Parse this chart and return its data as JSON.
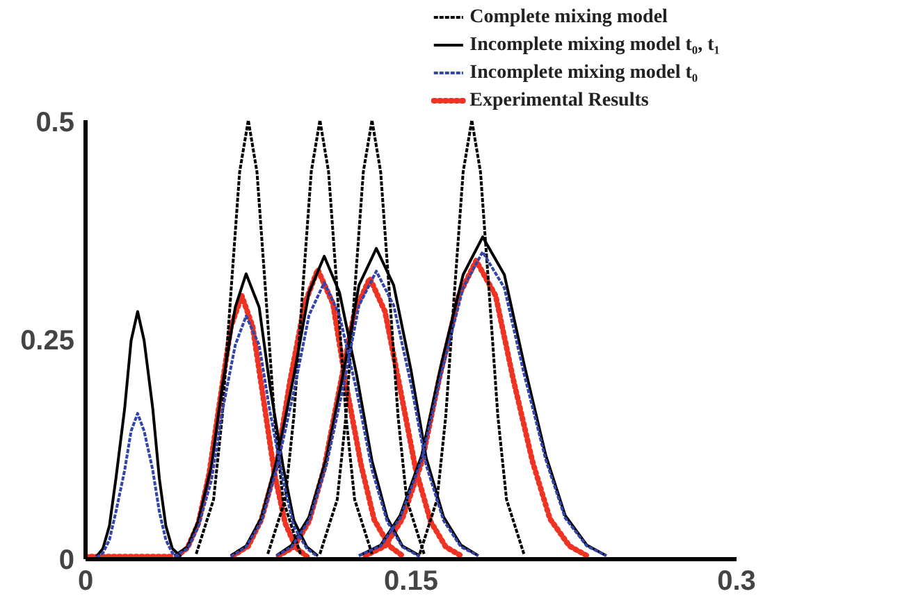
{
  "chart_data": {
    "type": "line",
    "xlim": [
      0,
      0.3
    ],
    "ylim": [
      0,
      0.5
    ],
    "xticks": [
      0,
      0.15,
      0.3
    ],
    "yticks": [
      0,
      0.25,
      0.5
    ],
    "grid": false,
    "legend": "top right",
    "marker": "none",
    "series": [
      {
        "name": "Complete mixing model",
        "color": "#000000",
        "line_style": "dashed",
        "x": [
          0.051,
          0.059,
          0.063,
          0.067,
          0.071,
          0.075,
          0.079,
          0.083,
          0.087,
          0.091,
          0.099
        ],
        "values": [
          0.006,
          0.068,
          0.163,
          0.304,
          0.441,
          0.5,
          0.441,
          0.304,
          0.163,
          0.068,
          0.006
        ]
      },
      {
        "color": "#000000",
        "line_style": "dashed",
        "x": [
          0.084,
          0.092,
          0.096,
          0.1,
          0.104,
          0.108,
          0.112,
          0.116,
          0.12,
          0.124,
          0.132
        ],
        "values": [
          0.006,
          0.068,
          0.163,
          0.304,
          0.441,
          0.5,
          0.441,
          0.304,
          0.163,
          0.068,
          0.006
        ]
      },
      {
        "color": "#000000",
        "line_style": "dashed",
        "x": [
          0.108,
          0.116,
          0.12,
          0.124,
          0.128,
          0.132,
          0.136,
          0.14,
          0.144,
          0.148,
          0.156
        ],
        "values": [
          0.006,
          0.068,
          0.163,
          0.304,
          0.441,
          0.5,
          0.441,
          0.304,
          0.163,
          0.068,
          0.006
        ]
      },
      {
        "color": "#000000",
        "line_style": "dashed",
        "x": [
          0.154,
          0.162,
          0.166,
          0.17,
          0.174,
          0.178,
          0.182,
          0.186,
          0.19,
          0.194,
          0.202
        ],
        "values": [
          0.006,
          0.068,
          0.163,
          0.304,
          0.441,
          0.5,
          0.441,
          0.304,
          0.163,
          0.068,
          0.006
        ]
      },
      {
        "name": "Incomplete mixing model t₀, t₁",
        "color": "#000000",
        "line_style": "solid",
        "x": [
          0.005,
          0.008,
          0.011,
          0.014,
          0.018,
          0.021,
          0.024,
          0.027,
          0.031,
          0.034,
          0.037,
          0.04,
          0.044
        ],
        "values": [
          0.003,
          0.012,
          0.038,
          0.092,
          0.171,
          0.249,
          0.282,
          0.249,
          0.171,
          0.092,
          0.038,
          0.012,
          0.003
        ]
      },
      {
        "color": "#000000",
        "line_style": "solid",
        "x": [
          0.041,
          0.047,
          0.052,
          0.058,
          0.063,
          0.069,
          0.074,
          0.08,
          0.085,
          0.091,
          0.096,
          0.102,
          0.107
        ],
        "values": [
          0.004,
          0.014,
          0.044,
          0.106,
          0.197,
          0.287,
          0.325,
          0.287,
          0.197,
          0.106,
          0.044,
          0.014,
          0.004
        ]
      },
      {
        "color": "#000000",
        "line_style": "solid",
        "x": [
          0.067,
          0.074,
          0.081,
          0.088,
          0.096,
          0.103,
          0.11,
          0.117,
          0.125,
          0.132,
          0.139,
          0.146,
          0.154
        ],
        "values": [
          0.004,
          0.015,
          0.047,
          0.112,
          0.209,
          0.304,
          0.345,
          0.304,
          0.209,
          0.112,
          0.047,
          0.015,
          0.004
        ]
      },
      {
        "color": "#000000",
        "line_style": "solid",
        "x": [
          0.088,
          0.095,
          0.103,
          0.111,
          0.119,
          0.126,
          0.134,
          0.142,
          0.15,
          0.157,
          0.165,
          0.173,
          0.181
        ],
        "values": [
          0.004,
          0.016,
          0.048,
          0.115,
          0.215,
          0.312,
          0.354,
          0.312,
          0.215,
          0.115,
          0.048,
          0.016,
          0.004
        ]
      },
      {
        "color": "#000000",
        "line_style": "solid",
        "x": [
          0.126,
          0.136,
          0.145,
          0.155,
          0.164,
          0.174,
          0.183,
          0.193,
          0.202,
          0.212,
          0.221,
          0.231,
          0.24
        ],
        "values": [
          0.004,
          0.016,
          0.05,
          0.119,
          0.223,
          0.324,
          0.367,
          0.324,
          0.223,
          0.119,
          0.05,
          0.016,
          0.004
        ]
      },
      {
        "name": "Incomplete mixing model t₀",
        "color": "#3344aa",
        "line_style": "dashed",
        "x": [
          0.005,
          0.008,
          0.011,
          0.014,
          0.018,
          0.021,
          0.024,
          0.027,
          0.031,
          0.034,
          0.037,
          0.04,
          0.044
        ],
        "values": [
          0.002,
          0.007,
          0.022,
          0.054,
          0.101,
          0.146,
          0.166,
          0.146,
          0.101,
          0.054,
          0.022,
          0.007,
          0.002
        ]
      },
      {
        "color": "#3344aa",
        "line_style": "dashed",
        "x": [
          0.041,
          0.047,
          0.052,
          0.058,
          0.063,
          0.069,
          0.074,
          0.08,
          0.085,
          0.091,
          0.096,
          0.102,
          0.107
        ],
        "values": [
          0.003,
          0.012,
          0.037,
          0.09,
          0.168,
          0.244,
          0.277,
          0.244,
          0.168,
          0.09,
          0.037,
          0.012,
          0.003
        ]
      },
      {
        "color": "#3344aa",
        "line_style": "dashed",
        "x": [
          0.067,
          0.074,
          0.081,
          0.088,
          0.096,
          0.103,
          0.11,
          0.117,
          0.125,
          0.132,
          0.139,
          0.146,
          0.154
        ],
        "values": [
          0.003,
          0.014,
          0.043,
          0.102,
          0.191,
          0.278,
          0.315,
          0.278,
          0.191,
          0.102,
          0.043,
          0.014,
          0.003
        ]
      },
      {
        "color": "#3344aa",
        "line_style": "dashed",
        "x": [
          0.088,
          0.095,
          0.103,
          0.111,
          0.119,
          0.126,
          0.134,
          0.142,
          0.15,
          0.157,
          0.165,
          0.173,
          0.181
        ],
        "values": [
          0.004,
          0.014,
          0.044,
          0.107,
          0.199,
          0.289,
          0.328,
          0.289,
          0.199,
          0.107,
          0.044,
          0.014,
          0.004
        ]
      },
      {
        "color": "#3344aa",
        "line_style": "dashed",
        "x": [
          0.126,
          0.136,
          0.145,
          0.155,
          0.164,
          0.174,
          0.183,
          0.193,
          0.202,
          0.212,
          0.221,
          0.231,
          0.24
        ],
        "values": [
          0.004,
          0.015,
          0.047,
          0.114,
          0.212,
          0.309,
          0.35,
          0.309,
          0.212,
          0.114,
          0.047,
          0.015,
          0.004
        ]
      },
      {
        "name": "Experimental Results",
        "color": "#ee3322",
        "line_style": "dotted",
        "x": [
          0,
          0.01,
          0.02,
          0.03,
          0.04
        ],
        "values": [
          0.003,
          0.003,
          0.003,
          0.003,
          0.003
        ]
      },
      {
        "color": "#ee3322",
        "line_style": "dotted",
        "x": [
          0.042,
          0.047,
          0.052,
          0.057,
          0.062,
          0.067,
          0.072,
          0.077,
          0.082,
          0.087,
          0.092,
          0.097,
          0.102
        ],
        "values": [
          0.003,
          0.013,
          0.041,
          0.098,
          0.182,
          0.265,
          0.3,
          0.265,
          0.182,
          0.098,
          0.041,
          0.013,
          0.003
        ]
      },
      {
        "color": "#ee3322",
        "line_style": "dotted",
        "x": [
          0.068,
          0.075,
          0.081,
          0.088,
          0.094,
          0.101,
          0.107,
          0.114,
          0.12,
          0.127,
          0.133,
          0.14,
          0.146
        ],
        "values": [
          0.004,
          0.015,
          0.045,
          0.107,
          0.2,
          0.291,
          0.33,
          0.291,
          0.2,
          0.107,
          0.045,
          0.015,
          0.004
        ]
      },
      {
        "color": "#ee3322",
        "line_style": "dotted",
        "x": [
          0.089,
          0.096,
          0.103,
          0.11,
          0.117,
          0.124,
          0.131,
          0.138,
          0.145,
          0.152,
          0.159,
          0.166,
          0.173
        ],
        "values": [
          0.004,
          0.014,
          0.043,
          0.104,
          0.194,
          0.282,
          0.32,
          0.282,
          0.194,
          0.104,
          0.043,
          0.014,
          0.004
        ]
      },
      {
        "color": "#ee3322",
        "line_style": "dotted",
        "x": [
          0.129,
          0.138,
          0.146,
          0.155,
          0.163,
          0.172,
          0.18,
          0.189,
          0.197,
          0.206,
          0.214,
          0.223,
          0.231
        ],
        "values": [
          0.004,
          0.015,
          0.046,
          0.111,
          0.206,
          0.3,
          0.34,
          0.3,
          0.206,
          0.111,
          0.046,
          0.015,
          0.004
        ]
      }
    ]
  }
}
